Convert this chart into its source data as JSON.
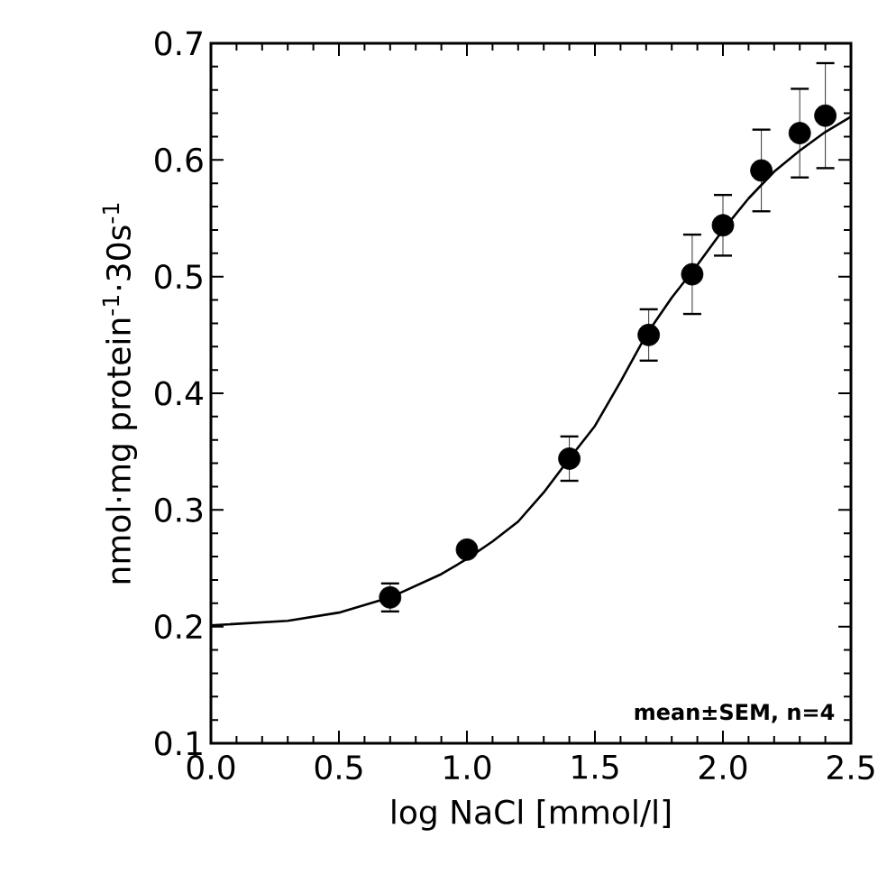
{
  "chart_data": {
    "type": "scatter",
    "xlabel": "log NaCl [mmol/l]",
    "ylabel": "nmol·mg protein$^{-1}$·30s$^{-1}$",
    "xlim": [
      0,
      2.5
    ],
    "ylim": [
      0.1,
      0.7
    ],
    "xticks": [
      {
        "value": 0,
        "label": "0.0"
      },
      0.5,
      {
        "value": 1,
        "label": "1.0"
      },
      1.5,
      {
        "value": 2,
        "label": "2.0"
      },
      2.5
    ],
    "yticks": [
      0.1,
      0.2,
      0.3,
      0.4,
      0.5,
      0.6,
      0.7
    ],
    "annotations": [
      "mean±SEM, n=4"
    ],
    "series": [
      {
        "color": "#000000",
        "marker": "circle",
        "x": [
          0.7,
          1.0,
          1.4,
          1.71,
          1.88,
          2.0,
          2.15,
          2.3,
          2.4
        ],
        "values": [
          0.225,
          0.266,
          0.344,
          0.45,
          0.502,
          0.544,
          0.591,
          0.623,
          0.638
        ],
        "errors": [
          0.012,
          null,
          0.019,
          0.022,
          0.034,
          0.026,
          0.035,
          0.038,
          0.045
        ]
      },
      {
        "type": "line",
        "color": "#000000",
        "marker": "none",
        "line_style": "solid",
        "x": [
          0,
          0.3,
          0.5,
          0.7,
          0.9,
          1.0,
          1.1,
          1.2,
          1.3,
          1.4,
          1.5,
          1.6,
          1.7,
          1.8,
          1.9,
          2.0,
          2.1,
          2.2,
          2.3,
          2.4,
          2.5
        ],
        "values": [
          0.201,
          0.205,
          0.212,
          0.225,
          0.245,
          0.258,
          0.273,
          0.29,
          0.315,
          0.344,
          0.372,
          0.41,
          0.45,
          0.482,
          0.51,
          0.54,
          0.567,
          0.59,
          0.608,
          0.624,
          0.637
        ]
      }
    ]
  }
}
